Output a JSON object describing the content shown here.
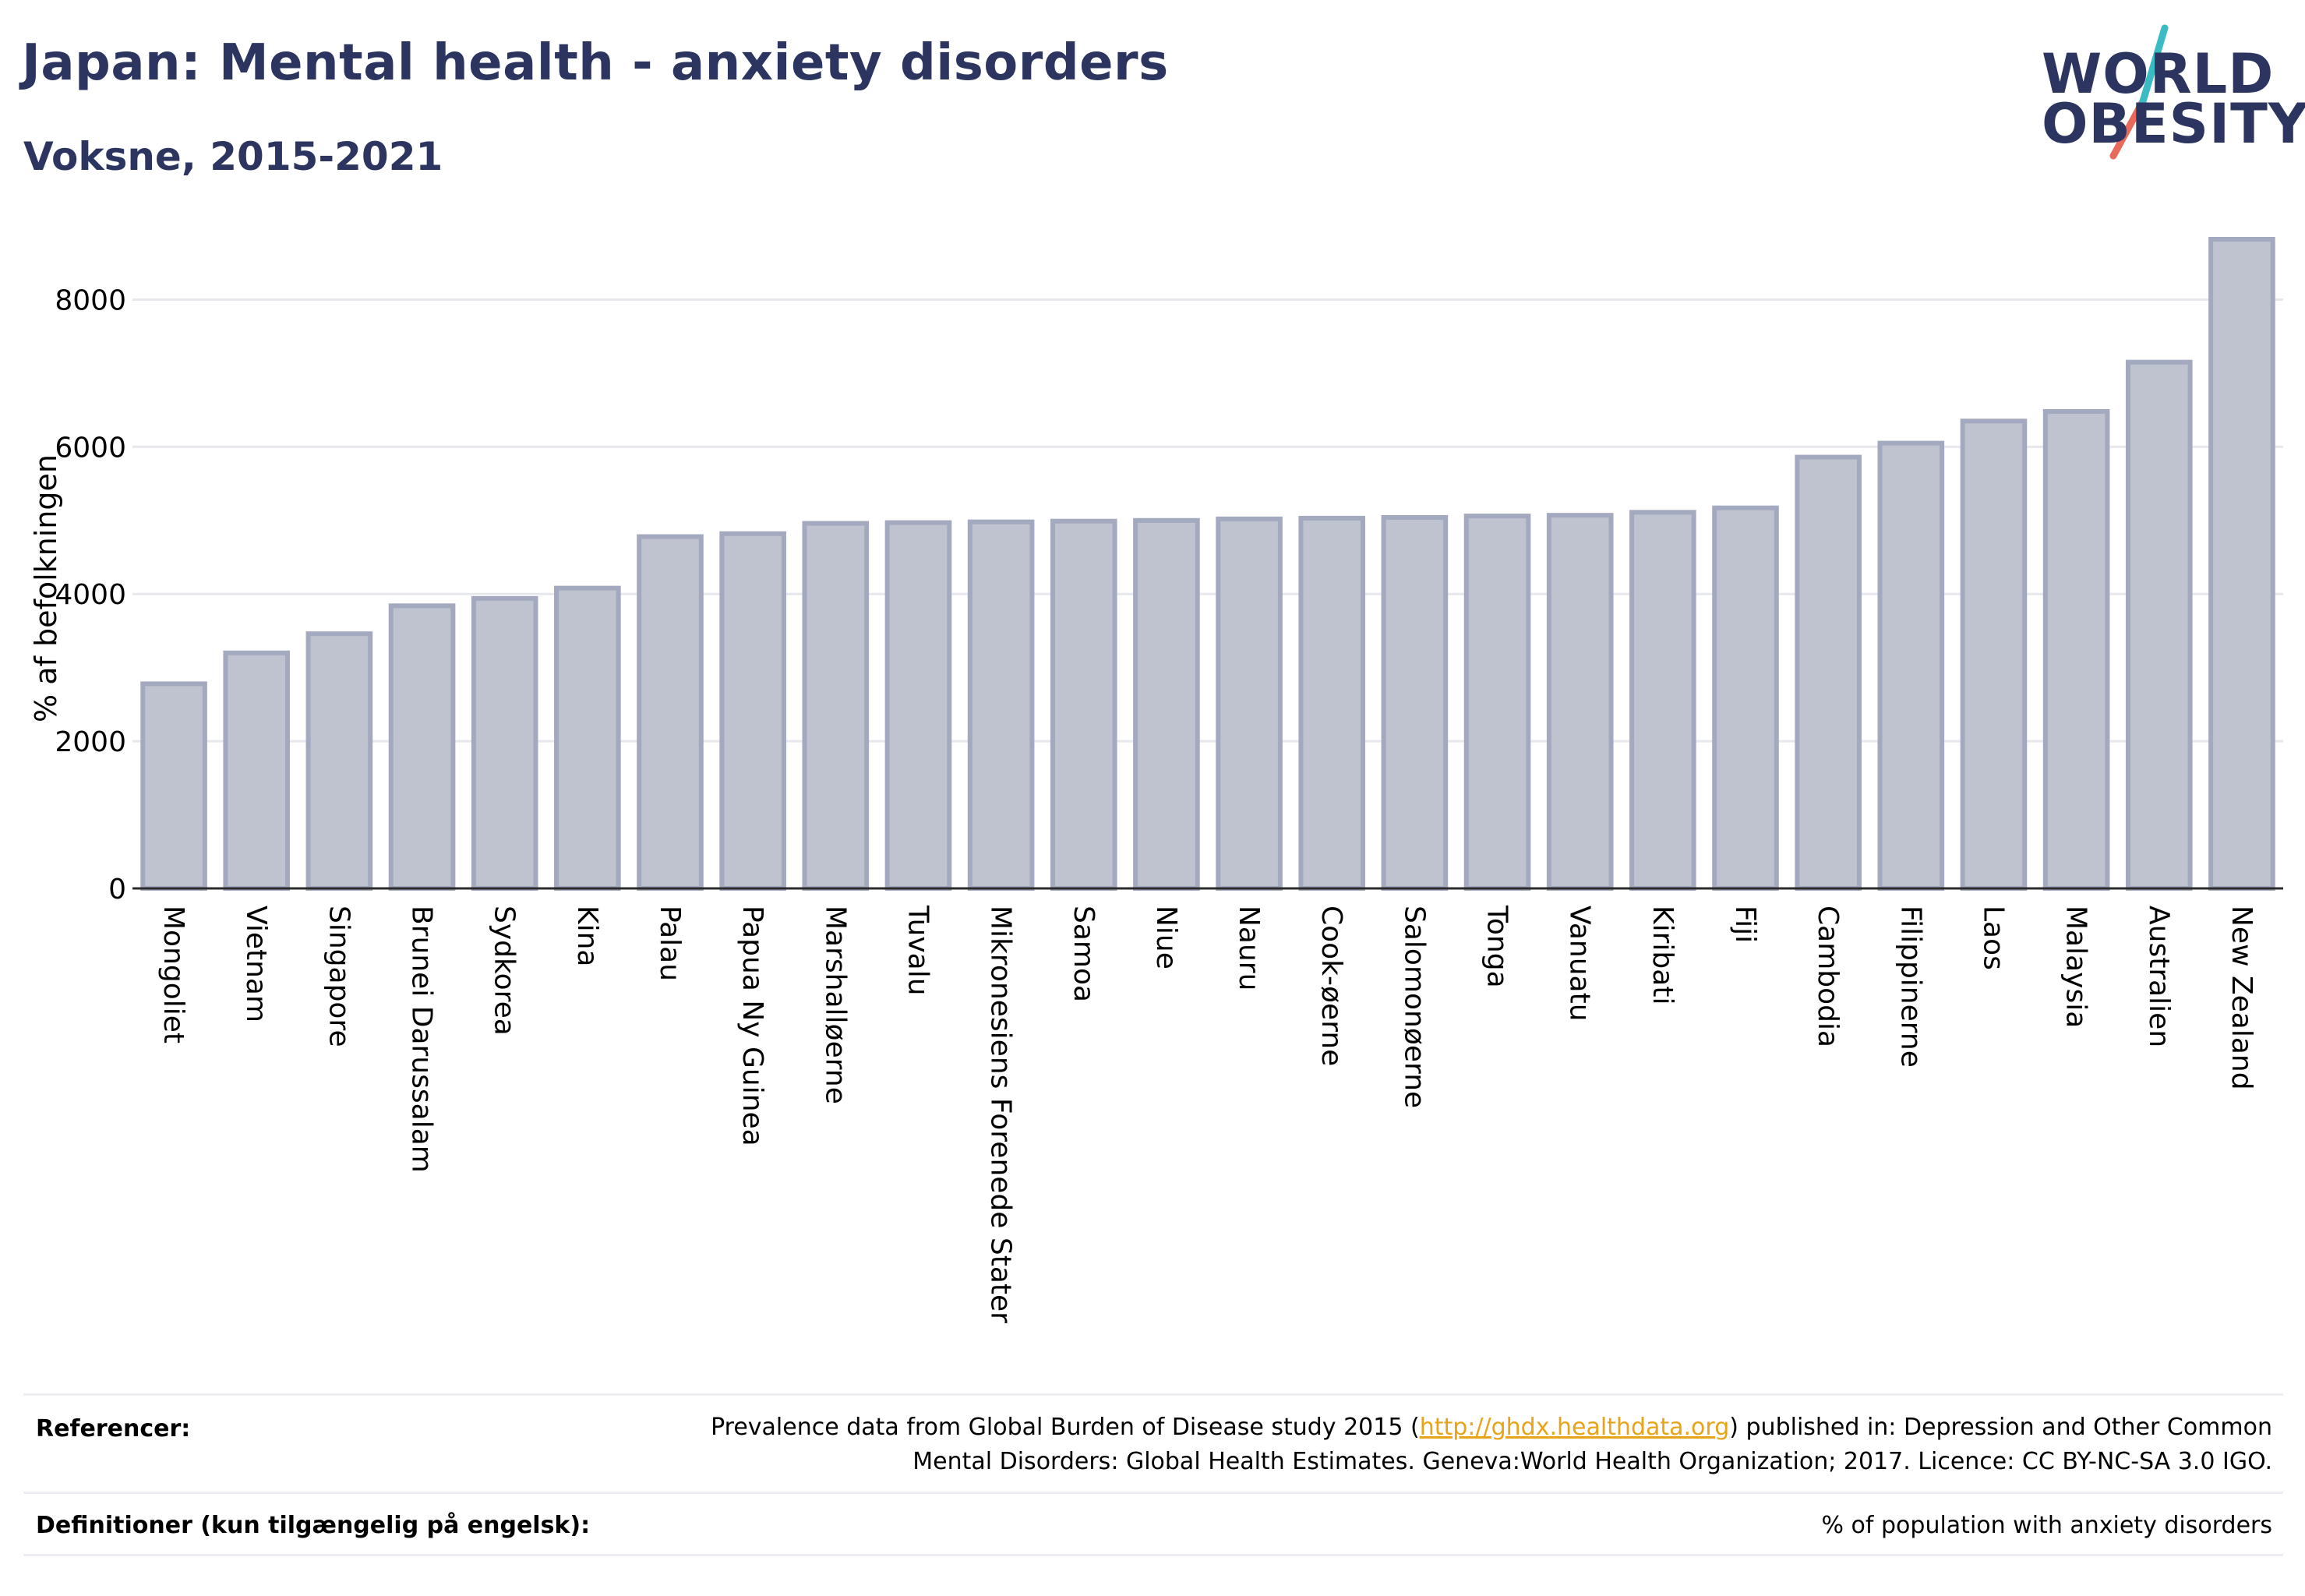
{
  "header": {
    "title": "Japan: Mental health - anxiety disorders",
    "subtitle": "Voksne, 2015-2021"
  },
  "logo": {
    "line1": "WORLD",
    "line2": "OBESITY",
    "accent_teal": "#3bbcc4",
    "accent_coral": "#e86a5a"
  },
  "chart_data": {
    "type": "bar",
    "ylabel": "% af befolkningen",
    "ylim": [
      0,
      9000
    ],
    "yticks": [
      0,
      2000,
      4000,
      6000,
      8000
    ],
    "grid": true,
    "bar_color": "#bfc3d0",
    "bar_edge_color": "#a3a9bf",
    "categories": [
      "Mongoliet",
      "Vietnam",
      "Singapore",
      "Brunei Darussalam",
      "Sydkorea",
      "Kina",
      "Palau",
      "Papua Ny Guinea",
      "Marshalløerne",
      "Tuvalu",
      "Mikronesiens Forenede Stater",
      "Samoa",
      "Niue",
      "Nauru",
      "Cook-øerne",
      "Salomonøerne",
      "Tonga",
      "Vanuatu",
      "Kiribati",
      "Fiji",
      "Cambodia",
      "Filippinerne",
      "Laos",
      "Malaysia",
      "Australien",
      "New Zealand"
    ],
    "values": [
      2780,
      3200,
      3460,
      3840,
      3940,
      4080,
      4780,
      4820,
      4960,
      4970,
      4980,
      4990,
      5000,
      5020,
      5030,
      5040,
      5060,
      5070,
      5110,
      5170,
      5860,
      6050,
      6350,
      6480,
      7150,
      8820
    ]
  },
  "footer": {
    "references_label": "Referencer:",
    "references_text_before": "Prevalence data from Global Burden of Disease study 2015 (",
    "references_link": "http://ghdx.healthdata.org",
    "references_text_after": ") published in: Depression and Other Common",
    "references_line2": "Mental Disorders: Global Health Estimates. Geneva:World Health Organization; 2017. Licence: CC BY-NC-SA 3.0 IGO.",
    "definitions_label": "Definitioner (kun tilgængelig på engelsk):",
    "definitions_text": "% of population with anxiety disorders",
    "link_color": "#e8a317"
  }
}
